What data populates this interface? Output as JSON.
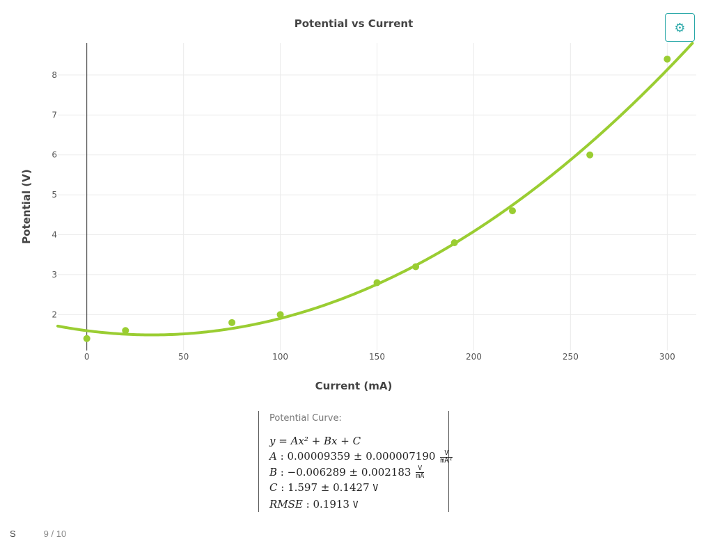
{
  "chart_data": {
    "type": "scatter",
    "title": "Potential vs Current",
    "xlabel": "Current (mA)",
    "ylabel": "Potential (V)",
    "xlim": [
      -15,
      315
    ],
    "ylim": [
      1.1,
      8.8
    ],
    "x_ticks": [
      0,
      50,
      100,
      150,
      200,
      250,
      300
    ],
    "y_ticks": [
      2,
      3,
      4,
      5,
      6,
      7,
      8
    ],
    "grid": true,
    "series": [
      {
        "type": "scatter",
        "color": "#9acd32",
        "x": [
          0,
          20,
          75,
          100,
          150,
          170,
          190,
          220,
          260,
          300
        ],
        "y": [
          1.4,
          1.6,
          1.8,
          2.0,
          2.8,
          3.2,
          3.8,
          4.6,
          6.0,
          8.4
        ]
      },
      {
        "type": "line",
        "color": "#9acd32",
        "fit": {
          "A": 9.359e-05,
          "B": -0.006289,
          "C": 1.597
        }
      }
    ]
  },
  "settings": {
    "icon": "gear-icon"
  },
  "fit": {
    "heading": "Potential Curve:",
    "equation": "y = Ax² + Bx + C",
    "a": {
      "label": "A",
      "value": "0.00009359 ± 0.000007190",
      "unit_num": "V",
      "unit_den": "mA²"
    },
    "b": {
      "label": "B",
      "value": "−0.006289 ± 0.002183",
      "unit_num": "V",
      "unit_den": "mA"
    },
    "c": {
      "label": "C",
      "value": "1.597 ± 0.1427",
      "unit": "V"
    },
    "rmse": {
      "label": "RMSE",
      "value": "0.1913",
      "unit": "V"
    }
  },
  "footer": {
    "label": "S",
    "count": "9 / 10"
  }
}
